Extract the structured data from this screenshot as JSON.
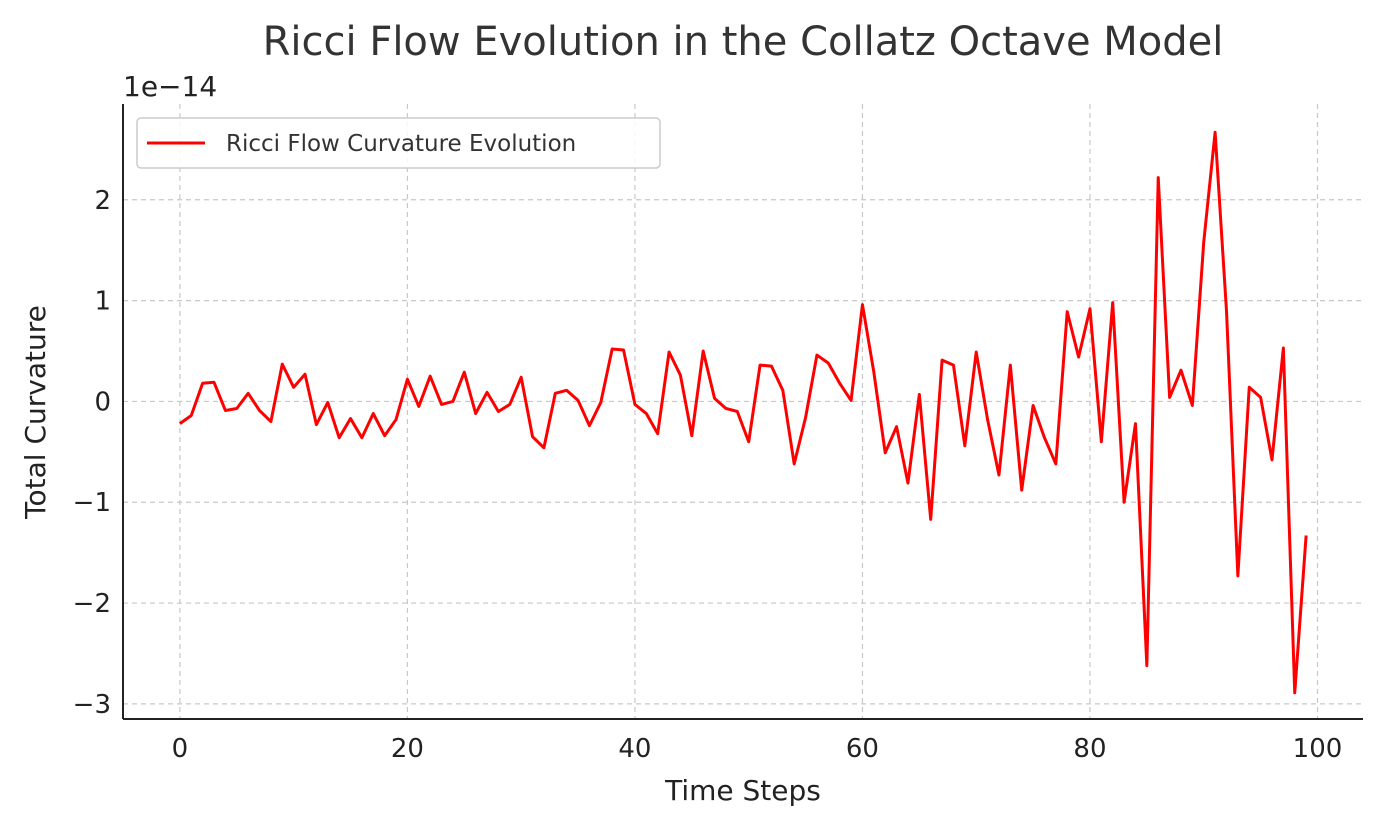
{
  "chart_data": {
    "type": "line",
    "title": "Ricci Flow Evolution in the Collatz Octave Model",
    "xlabel": "Time Steps",
    "ylabel": "Total Curvature",
    "y_offset_label": "1e−14",
    "xlim": [
      -5,
      104
    ],
    "ylim": [
      -3.15,
      2.95
    ],
    "x_ticks": [
      0,
      20,
      40,
      60,
      80,
      100
    ],
    "x_tick_labels": [
      "0",
      "20",
      "40",
      "60",
      "80",
      "100"
    ],
    "y_ticks": [
      -3,
      -2,
      -1,
      0,
      1,
      2
    ],
    "y_tick_labels": [
      "−3",
      "−2",
      "−1",
      "0",
      "1",
      "2"
    ],
    "grid": true,
    "legend_position": "top-left",
    "series": [
      {
        "name": "Ricci Flow Curvature Evolution",
        "color": "#ff0000",
        "x": [
          0,
          1,
          2,
          3,
          4,
          5,
          6,
          7,
          8,
          9,
          10,
          11,
          12,
          13,
          14,
          15,
          16,
          17,
          18,
          19,
          20,
          21,
          22,
          23,
          24,
          25,
          26,
          27,
          28,
          29,
          30,
          31,
          32,
          33,
          34,
          35,
          36,
          37,
          38,
          39,
          40,
          41,
          42,
          43,
          44,
          45,
          46,
          47,
          48,
          49,
          50,
          51,
          52,
          53,
          54,
          55,
          56,
          57,
          58,
          59,
          60,
          61,
          62,
          63,
          64,
          65,
          66,
          67,
          68,
          69,
          70,
          71,
          72,
          73,
          74,
          75,
          76,
          77,
          78,
          79,
          80,
          81,
          82,
          83,
          84,
          85,
          86,
          87,
          88,
          89,
          90,
          91,
          92,
          93,
          94,
          95,
          96,
          97,
          98,
          99
        ],
        "values": [
          -0.22,
          -0.14,
          0.18,
          0.19,
          -0.09,
          -0.07,
          0.08,
          -0.09,
          -0.2,
          0.37,
          0.14,
          0.27,
          -0.23,
          -0.01,
          -0.36,
          -0.17,
          -0.36,
          -0.12,
          -0.34,
          -0.18,
          0.22,
          -0.05,
          0.25,
          -0.03,
          0.0,
          0.29,
          -0.12,
          0.09,
          -0.1,
          -0.03,
          0.24,
          -0.35,
          -0.46,
          0.08,
          0.11,
          0.01,
          -0.24,
          -0.01,
          0.52,
          0.51,
          -0.03,
          -0.12,
          -0.32,
          0.49,
          0.26,
          -0.34,
          0.5,
          0.03,
          -0.07,
          -0.1,
          -0.4,
          0.36,
          0.35,
          0.11,
          -0.62,
          -0.16,
          0.46,
          0.38,
          0.18,
          0.01,
          0.96,
          0.29,
          -0.51,
          -0.25,
          -0.81,
          0.07,
          -1.17,
          0.41,
          0.36,
          -0.44,
          0.49,
          -0.18,
          -0.73,
          0.36,
          -0.88,
          -0.04,
          -0.36,
          -0.62,
          0.89,
          0.44,
          0.92,
          -0.4,
          0.98,
          -1.0,
          -0.22,
          -2.62,
          2.22,
          0.04,
          0.31,
          -0.04,
          1.58,
          2.67,
          0.9,
          -1.73,
          0.14,
          0.04,
          -0.58,
          0.53,
          -2.89,
          -1.33
        ]
      }
    ]
  }
}
